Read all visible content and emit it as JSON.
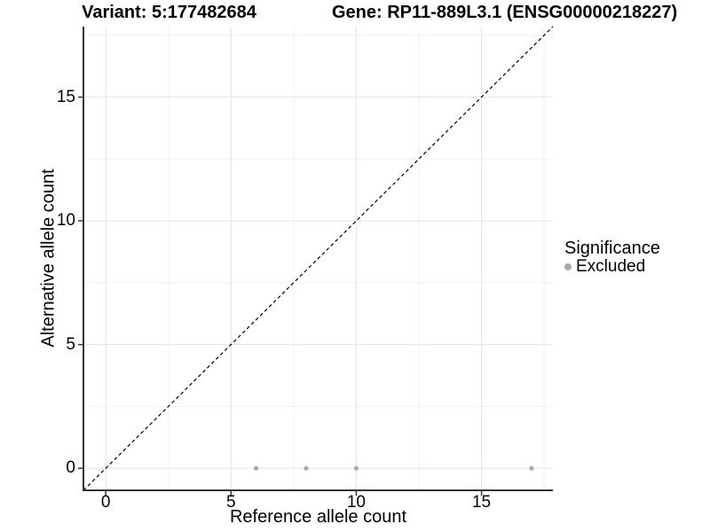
{
  "titles": {
    "variant": "Variant: 5:177482684",
    "gene": "Gene: RP11-889L3.1 (ENSG00000218227)"
  },
  "axes": {
    "x": {
      "label": "Reference allele count",
      "tick_labels": [
        "0",
        "5",
        "10",
        "15"
      ]
    },
    "y": {
      "label": "Alternative allele count",
      "tick_labels": [
        "0",
        "5",
        "10",
        "15"
      ]
    }
  },
  "legend": {
    "title": "Significance",
    "entries": [
      {
        "label": "Excluded",
        "color": "#a9a9a9"
      }
    ]
  },
  "chart_data": {
    "type": "scatter",
    "title": "Variant: 5:177482684 | Gene: RP11-889L3.1 (ENSG00000218227)",
    "xlabel": "Reference allele count",
    "ylabel": "Alternative allele count",
    "xlim": [
      -0.89,
      17.85
    ],
    "ylim": [
      -0.89,
      17.85
    ],
    "x_ticks": [
      0,
      5,
      10,
      15
    ],
    "y_ticks": [
      0,
      5,
      10,
      15
    ],
    "x_minor_ticks": [
      2.5,
      7.5,
      12.5,
      17.5
    ],
    "y_minor_ticks": [
      2.5,
      7.5,
      12.5,
      17.5
    ],
    "grid": true,
    "legend_position": "right",
    "identity_line": {
      "slope": 1,
      "intercept": 0,
      "style": "dashed",
      "color": "#000000"
    },
    "series": [
      {
        "name": "Excluded",
        "color": "#a9a9a9",
        "points": [
          {
            "x": 6,
            "y": 0
          },
          {
            "x": 8,
            "y": 0
          },
          {
            "x": 10,
            "y": 0
          },
          {
            "x": 17,
            "y": 0
          }
        ]
      }
    ],
    "colors": {
      "grid_major": "#e4e4e4",
      "grid_minor": "#f1f1f1",
      "axis_line": "#333333",
      "tick_mark": "#333333"
    }
  }
}
